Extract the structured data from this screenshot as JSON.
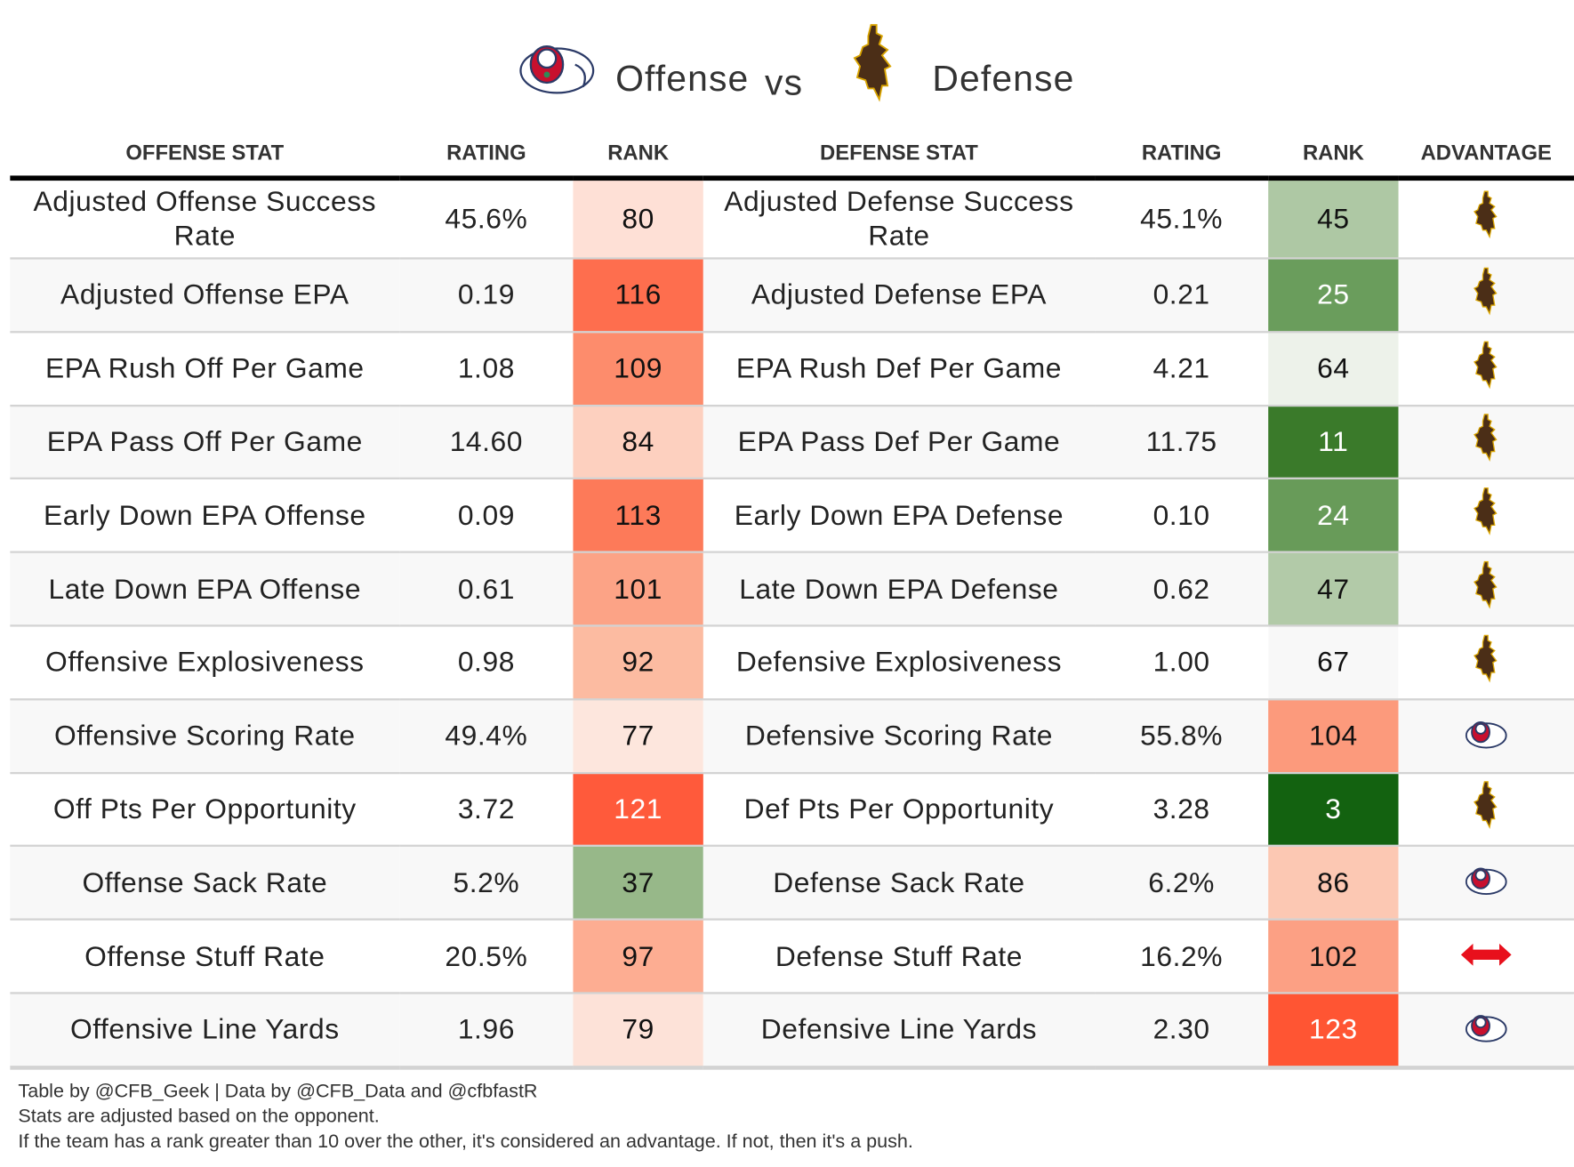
{
  "title": {
    "offense_label": "Offense",
    "vs_label": "vs",
    "defense_label": "Defense"
  },
  "chart_data": {
    "type": "table",
    "columns": [
      "OFFENSE STAT",
      "RATING",
      "RANK",
      "DEFENSE STAT",
      "RATING",
      "RANK",
      "ADVANTAGE"
    ],
    "rows": [
      {
        "off_stat": "Adjusted Offense Success Rate",
        "off_rating": "45.6%",
        "off_rank": "80",
        "off_color": "#fee0d6",
        "def_stat": "Adjusted Defense Success Rate",
        "def_rating": "45.1%",
        "def_rank": "45",
        "def_color": "#aec8a4",
        "advantage": "wyoming-cowboy"
      },
      {
        "off_stat": "Adjusted Offense EPA",
        "off_rating": "0.19",
        "off_rank": "116",
        "off_color": "#fe6e4e",
        "def_stat": "Adjusted Defense EPA",
        "def_rating": "0.21",
        "def_rank": "25",
        "def_color": "#6a9d5c",
        "advantage": "wyoming-cowboy"
      },
      {
        "off_stat": "EPA Rush Off Per Game",
        "off_rating": "1.08",
        "off_rank": "109",
        "off_color": "#fd8c6c",
        "def_stat": "EPA Rush Def Per Game",
        "def_rating": "4.21",
        "def_rank": "64",
        "def_color": "#edf2ea",
        "advantage": "wyoming-cowboy"
      },
      {
        "off_stat": "EPA Pass Off Per Game",
        "off_rating": "14.60",
        "off_rank": "84",
        "off_color": "#fdd0bf",
        "def_stat": "EPA Pass Def Per Game",
        "def_rating": "11.75",
        "def_rank": "11",
        "def_color": "#3a7a2a",
        "advantage": "wyoming-cowboy"
      },
      {
        "off_stat": "Early Down EPA Offense",
        "off_rating": "0.09",
        "off_rank": "113",
        "off_color": "#fd7a59",
        "def_stat": "Early Down EPA Defense",
        "def_rating": "0.10",
        "def_rank": "24",
        "def_color": "#689b59",
        "advantage": "wyoming-cowboy"
      },
      {
        "off_stat": "Late Down EPA Offense",
        "off_rating": "0.61",
        "off_rank": "101",
        "off_color": "#fca386",
        "def_stat": "Late Down EPA Defense",
        "def_rating": "0.62",
        "def_rank": "47",
        "def_color": "#b2caa8",
        "advantage": "wyoming-cowboy"
      },
      {
        "off_stat": "Offensive Explosiveness",
        "off_rating": "0.98",
        "off_rank": "92",
        "off_color": "#fcbba1",
        "def_stat": "Defensive Explosiveness",
        "def_rating": "1.00",
        "def_rank": "67",
        "def_color": "#f8f8f8",
        "advantage": "wyoming-cowboy"
      },
      {
        "off_stat": "Offensive Scoring Rate",
        "off_rating": "49.4%",
        "off_rank": "77",
        "off_color": "#fde6dd",
        "def_stat": "Defensive Scoring Rate",
        "def_rating": "55.8%",
        "def_rank": "104",
        "def_color": "#fc9a7c",
        "advantage": "fresno-bulldog"
      },
      {
        "off_stat": "Off Pts Per Opportunity",
        "off_rating": "3.72",
        "off_rank": "121",
        "off_color": "#ff5a3b",
        "def_stat": "Def Pts Per Opportunity",
        "def_rating": "3.28",
        "def_rank": "3",
        "def_color": "#136210",
        "advantage": "wyoming-cowboy"
      },
      {
        "off_stat": "Offense Sack Rate",
        "off_rating": "5.2%",
        "off_rank": "37",
        "off_color": "#97b889",
        "def_stat": "Defense Sack Rate",
        "def_rating": "6.2%",
        "def_rank": "86",
        "def_color": "#fcc8b3",
        "advantage": "fresno-bulldog"
      },
      {
        "off_stat": "Offense Stuff Rate",
        "off_rating": "20.5%",
        "off_rank": "97",
        "off_color": "#fdad92",
        "def_stat": "Defense Stuff Rate",
        "def_rating": "16.2%",
        "def_rank": "102",
        "def_color": "#fca084",
        "advantage": "push"
      },
      {
        "off_stat": "Offensive Line Yards",
        "off_rating": "1.96",
        "off_rank": "79",
        "off_color": "#fde2d8",
        "def_stat": "Defensive Line Yards",
        "def_rating": "2.30",
        "def_rank": "123",
        "def_color": "#ff5533",
        "advantage": "fresno-bulldog"
      }
    ]
  },
  "footer": {
    "line1": "Table by @CFB_Geek | Data by @CFB_Data and @cfbfastR",
    "line2": "Stats are adjusted based on the opponent.",
    "line3": "If the team has a rank greater than 10 over the other, it's considered an advantage. If not, then it's a push."
  }
}
